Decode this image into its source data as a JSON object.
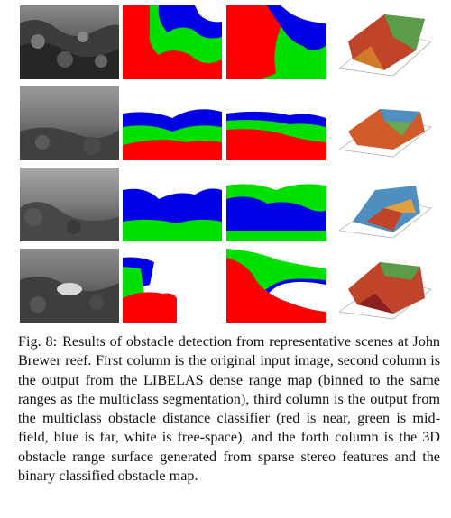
{
  "caption": {
    "label": "Fig. 8:",
    "text": "Results of obstacle detection from representative scenes at John Brewer reef. First column is the original input image, second column is the output from the LIBELAS dense range map (binned to the same ranges as the multiclass segmentation), third column is the output from the multiclass obstacle distance classifier (red is near, green is mid-field, blue is far, white is free-space), and the forth column is the 3D obstacle range surface generated from sparse stereo features and the binary classified obstacle map."
  },
  "colors": {
    "near": "#ff0000",
    "mid": "#00e000",
    "far": "#0000e6",
    "free": "#ffffff"
  }
}
